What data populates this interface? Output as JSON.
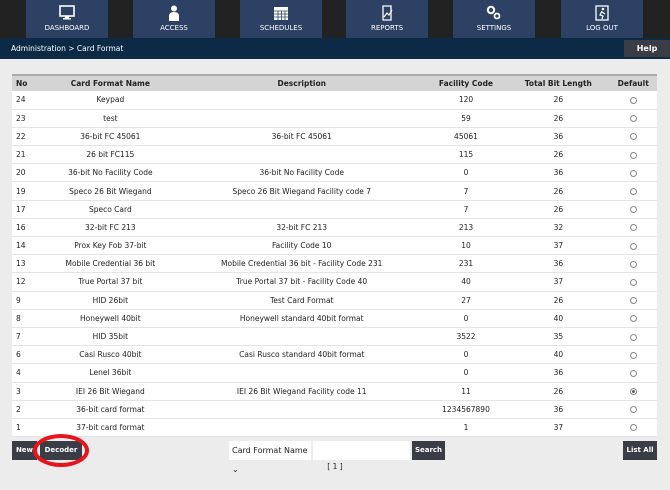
{
  "nav": [
    {
      "label": "DASHBOARD",
      "icon": "monitor-icon"
    },
    {
      "label": "ACCESS",
      "icon": "person-icon"
    },
    {
      "label": "SCHEDULES",
      "icon": "calendar-icon"
    },
    {
      "label": "REPORTS",
      "icon": "report-icon"
    },
    {
      "label": "SETTINGS",
      "icon": "gears-icon"
    },
    {
      "label": "LOG OUT",
      "icon": "exit-icon"
    }
  ],
  "breadcrumb": "Administration > Card Format",
  "help": "Help",
  "columns": [
    "No",
    "Card Format Name",
    "Description",
    "Facility Code",
    "Total Bit Length",
    "Default"
  ],
  "rows": [
    [
      "24",
      "Keypad",
      "",
      "120",
      "26",
      false
    ],
    [
      "23",
      "test",
      "",
      "59",
      "26",
      false
    ],
    [
      "22",
      "36-bit FC 45061",
      "36-bit FC 45061",
      "45061",
      "36",
      false
    ],
    [
      "21",
      "26 bit FC115",
      "",
      "115",
      "26",
      false
    ],
    [
      "20",
      "36-bit No Facility Code",
      "36-bit No Facility Code",
      "0",
      "36",
      false
    ],
    [
      "19",
      "Speco 26 Bit Wiegand",
      "Speco 26 Bit Wiegand Facility code 7",
      "7",
      "26",
      false
    ],
    [
      "17",
      "Speco Card",
      "",
      "7",
      "26",
      false
    ],
    [
      "16",
      "32-bit FC 213",
      "32-bit FC 213",
      "213",
      "32",
      false
    ],
    [
      "14",
      "Prox Key Fob 37-bit",
      "Facility Code 10",
      "10",
      "37",
      false
    ],
    [
      "13",
      "Mobile Credential 36 bit",
      "Mobile Credential 36 bit - Facility Code 231",
      "231",
      "36",
      false
    ],
    [
      "12",
      "True Portal 37 bit",
      "True Portal 37 bit - Facility Code 40",
      "40",
      "37",
      false
    ],
    [
      "9",
      "HID 26bit",
      "Test Card Format",
      "27",
      "26",
      false
    ],
    [
      "8",
      "Honeywell 40bit",
      "Honeywell standard 40bit format",
      "0",
      "40",
      false
    ],
    [
      "7",
      "HID 35bit",
      "",
      "3522",
      "35",
      false
    ],
    [
      "6",
      "Casi Rusco 40bit",
      "Casi Rusco standard 40bit format",
      "0",
      "40",
      false
    ],
    [
      "4",
      "Lenel 36bit",
      "",
      "0",
      "36",
      false
    ],
    [
      "3",
      "IEI 26 Bit Wiegand",
      "IEI 26 Bit Wiegand Facility code 11",
      "11",
      "26",
      true
    ],
    [
      "2",
      "36-bit card format",
      "",
      "1234567890",
      "36",
      false
    ],
    [
      "1",
      "37-bit card format",
      "",
      "1",
      "37",
      false
    ]
  ],
  "footer": {
    "new": "New",
    "decoder": "Decoder",
    "search_field": "Card Format Name",
    "search_value": "",
    "search": "Search",
    "list_all": "List All",
    "pager": "[ 1 ]"
  }
}
